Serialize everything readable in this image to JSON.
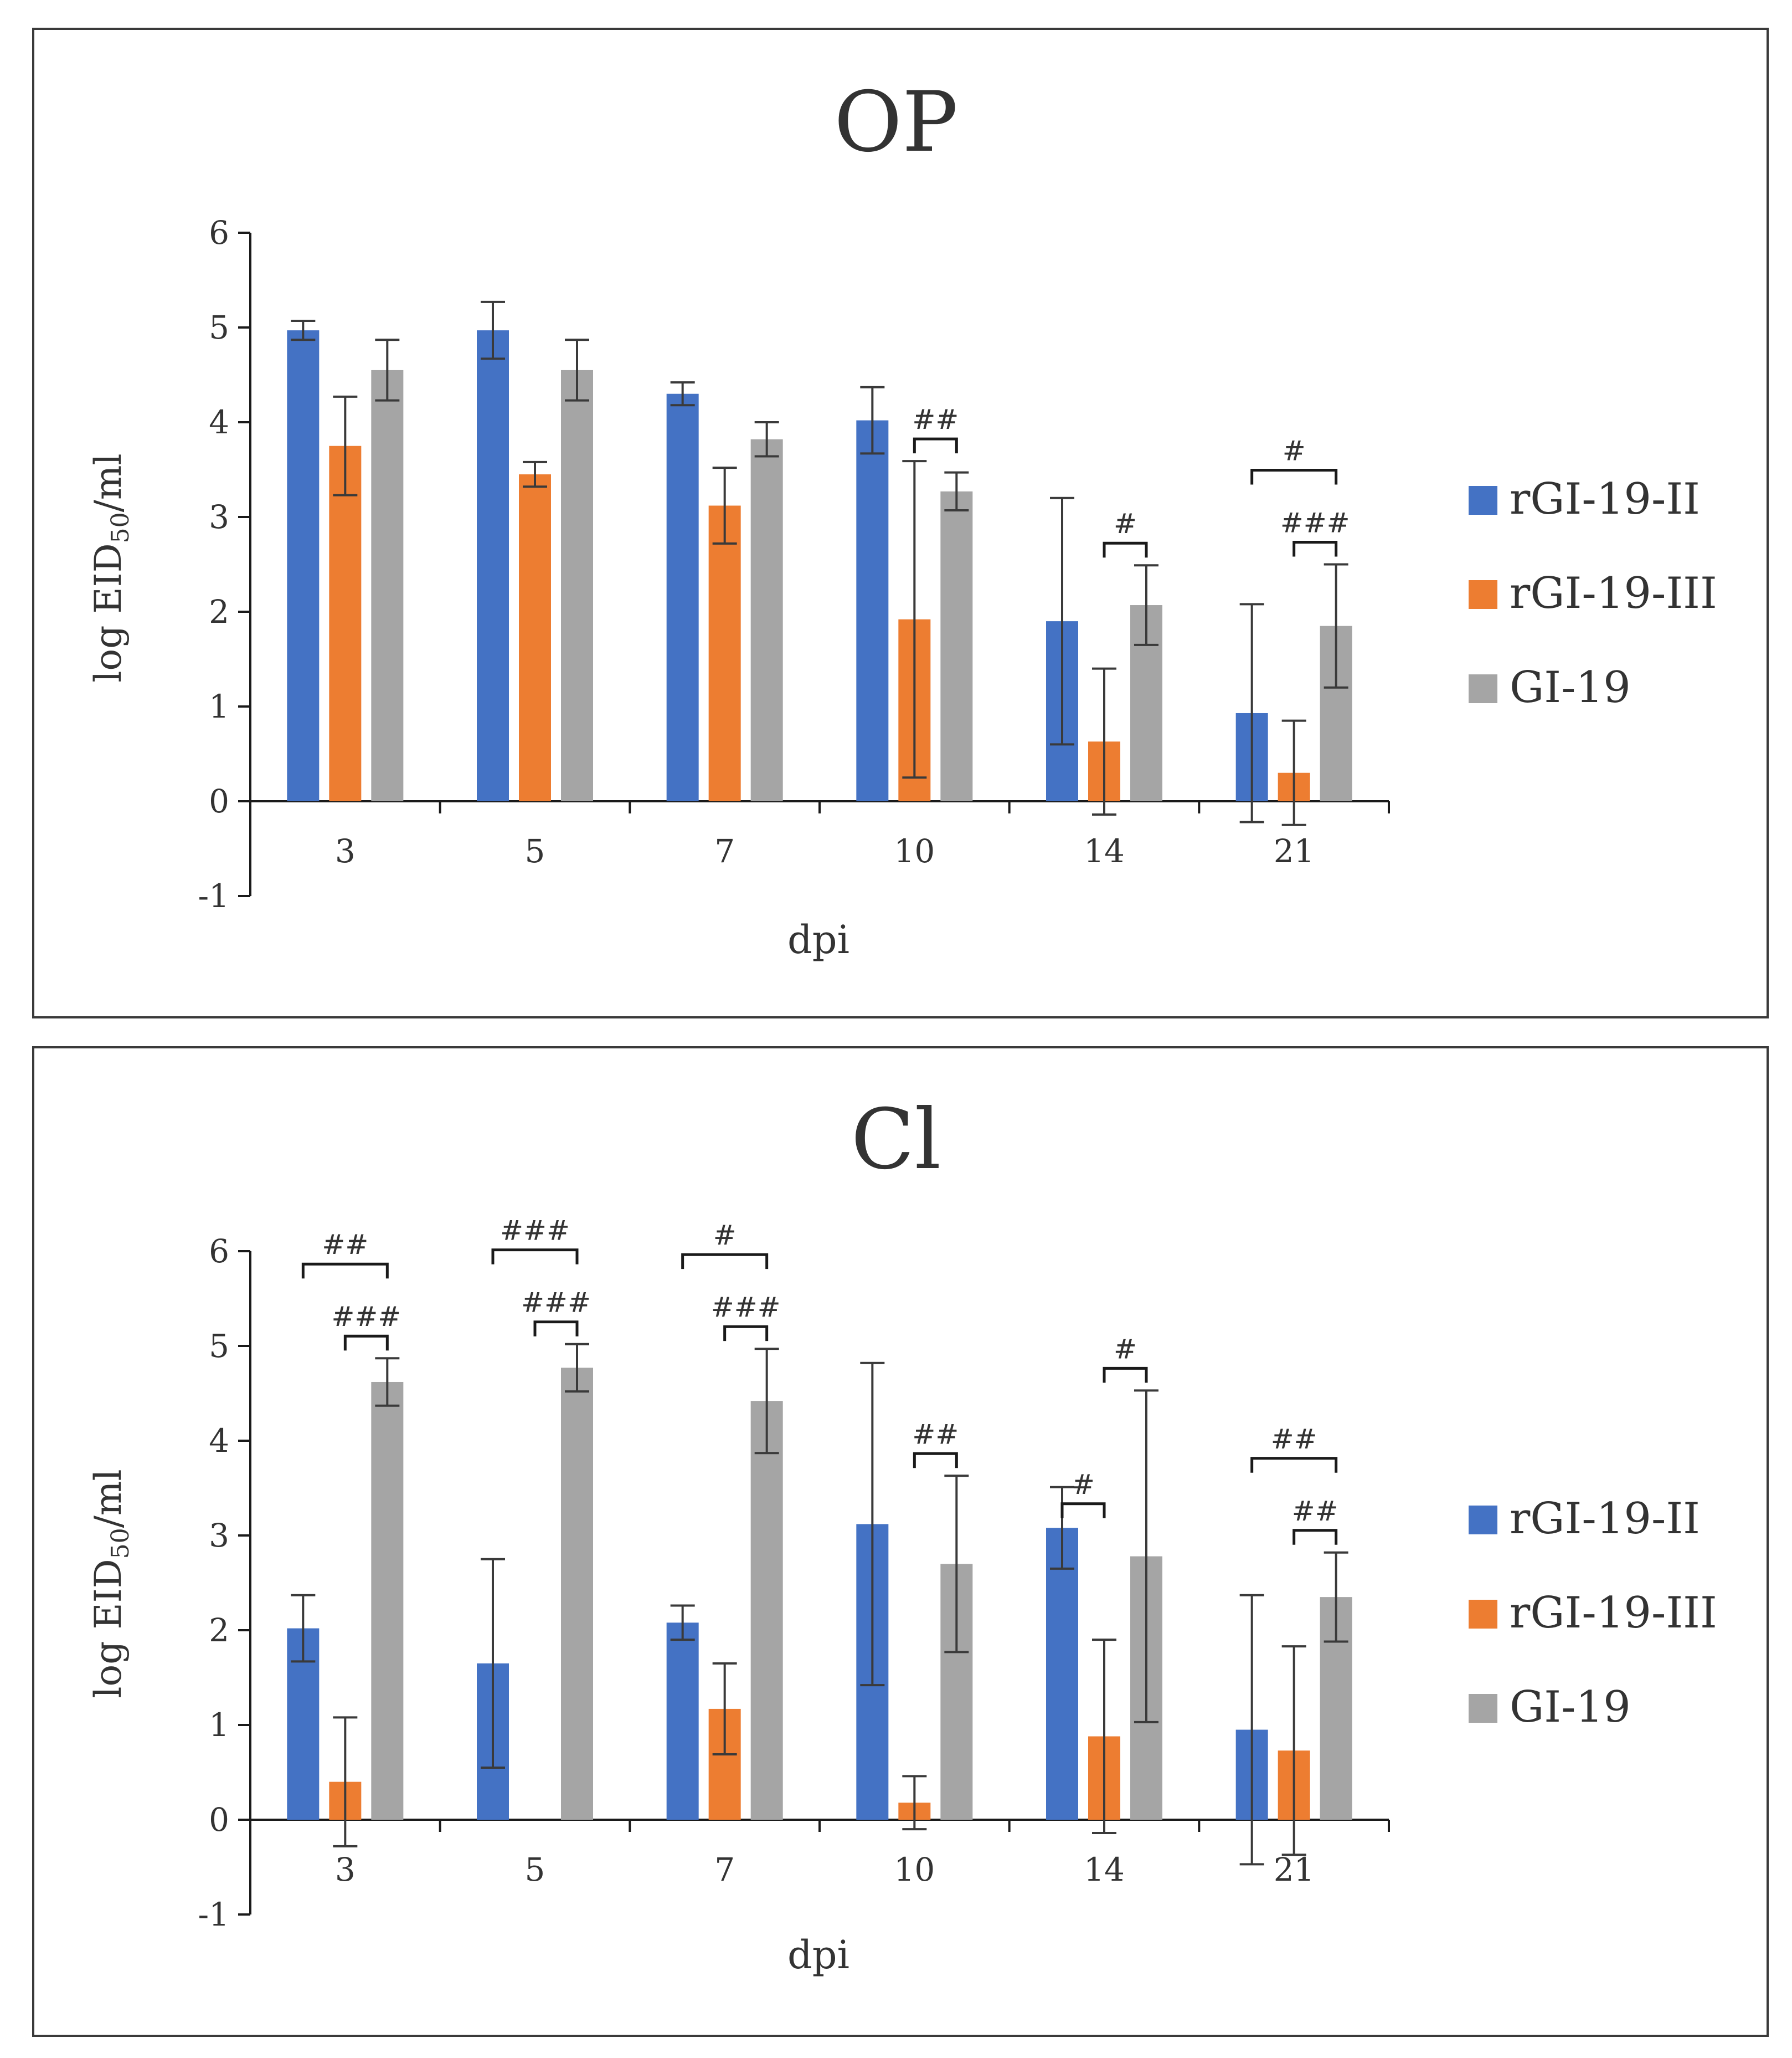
{
  "chart_data": [
    {
      "type": "bar",
      "title": "OP",
      "xlabel": "dpi",
      "ylabel": "log EID",
      "ylabel_sub": "50",
      "ylabel_suffix": "/ml",
      "ylim": [
        -1,
        6
      ],
      "yticks": [
        "6",
        "5",
        "4",
        "3",
        "2",
        "1",
        "0",
        "-1"
      ],
      "categories": [
        "3",
        "5",
        "7",
        "10",
        "14",
        "21"
      ],
      "series": [
        {
          "name": "rGI-19-II",
          "color": "#4472C4",
          "values": [
            4.97,
            4.97,
            4.3,
            4.02,
            1.9,
            0.93
          ],
          "errors": [
            0.1,
            0.3,
            0.12,
            0.35,
            1.3,
            1.15
          ]
        },
        {
          "name": "rGI-19-III",
          "color": "#ED7D31",
          "values": [
            3.75,
            3.45,
            3.12,
            1.92,
            0.63,
            0.3
          ],
          "errors": [
            0.52,
            0.13,
            0.4,
            1.67,
            0.77,
            0.55
          ]
        },
        {
          "name": "GI-19",
          "color": "#A5A5A5",
          "values": [
            4.55,
            4.55,
            3.82,
            3.27,
            2.07,
            1.85
          ],
          "errors": [
            0.32,
            0.32,
            0.18,
            0.2,
            0.42,
            0.65
          ]
        }
      ],
      "significance": [
        {
          "label": "##",
          "category": 3,
          "from": 1,
          "to": 2,
          "level": 0
        },
        {
          "label": "#",
          "category": 4,
          "from": 1,
          "to": 2,
          "level": 0
        },
        {
          "label": "#",
          "category": 5,
          "from": 0,
          "to": 2,
          "level": 1
        },
        {
          "label": "###",
          "category": 5,
          "from": 1,
          "to": 2,
          "level": 0
        }
      ]
    },
    {
      "type": "bar",
      "title": "Cl",
      "xlabel": "dpi",
      "ylabel": "log EID",
      "ylabel_sub": "50",
      "ylabel_suffix": "/ml",
      "ylim": [
        -1,
        6
      ],
      "yticks": [
        "6",
        "5",
        "4",
        "3",
        "2",
        "1",
        "0",
        "-1"
      ],
      "categories": [
        "3",
        "5",
        "7",
        "10",
        "14",
        "21"
      ],
      "series": [
        {
          "name": "rGI-19-II",
          "color": "#4472C4",
          "values": [
            2.02,
            1.65,
            2.08,
            3.12,
            3.08,
            0.95
          ],
          "errors": [
            0.35,
            1.1,
            0.18,
            1.7,
            0.43,
            1.42
          ]
        },
        {
          "name": "rGI-19-III",
          "color": "#ED7D31",
          "values": [
            0.4,
            0.0,
            1.17,
            0.18,
            0.88,
            0.73
          ],
          "errors": [
            0.68,
            0.0,
            0.48,
            0.28,
            1.02,
            1.1
          ]
        },
        {
          "name": "GI-19",
          "color": "#A5A5A5",
          "values": [
            4.62,
            4.77,
            4.42,
            2.7,
            2.78,
            2.35
          ],
          "errors": [
            0.25,
            0.25,
            0.55,
            0.93,
            1.75,
            0.47
          ]
        }
      ],
      "significance": [
        {
          "label": "##",
          "category": 0,
          "from": 0,
          "to": 2,
          "level": 1
        },
        {
          "label": "###",
          "category": 0,
          "from": 1,
          "to": 2,
          "level": 0
        },
        {
          "label": "###",
          "category": 1,
          "from": 0,
          "to": 2,
          "level": 1
        },
        {
          "label": "###",
          "category": 1,
          "from": 1,
          "to": 2,
          "level": 0
        },
        {
          "label": "#",
          "category": 2,
          "from": 0,
          "to": 2,
          "level": 1
        },
        {
          "label": "###",
          "category": 2,
          "from": 1,
          "to": 2,
          "level": 0
        },
        {
          "label": "##",
          "category": 3,
          "from": 1,
          "to": 2,
          "level": 0
        },
        {
          "label": "#",
          "category": 4,
          "from": 0,
          "to": 1,
          "level": -1
        },
        {
          "label": "#",
          "category": 4,
          "from": 1,
          "to": 2,
          "level": 0
        },
        {
          "label": "##",
          "category": 5,
          "from": 0,
          "to": 2,
          "level": 1
        },
        {
          "label": "##",
          "category": 5,
          "from": 1,
          "to": 2,
          "level": 0
        }
      ]
    }
  ]
}
